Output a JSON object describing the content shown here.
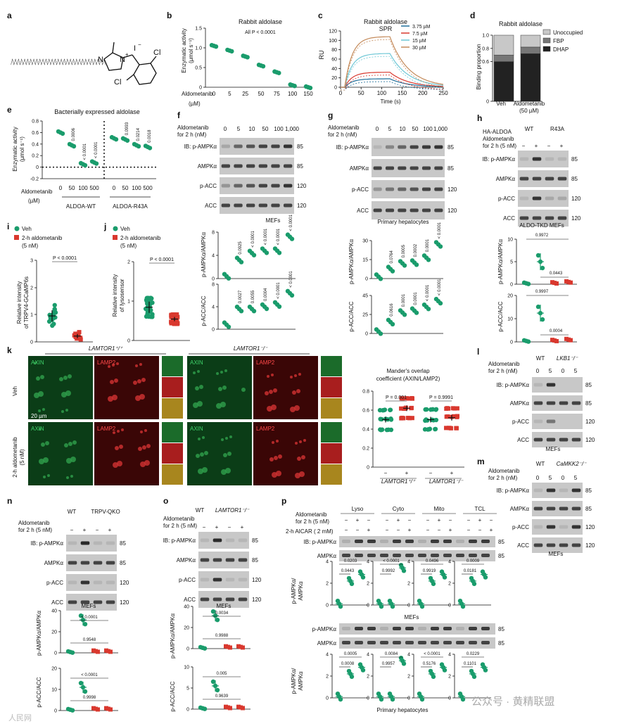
{
  "panels": {
    "a": {
      "letter": "a",
      "cl1": "Cl",
      "cl2": "Cl",
      "iodide": "I",
      "minus": "−",
      "plus": "+",
      "n1": "N",
      "n2": "N"
    },
    "b": {
      "letter": "b",
      "title": "Rabbit aldolase",
      "ylabel_line1": "Enzymatic activity",
      "ylabel_line2": "(µmol s⁻¹)",
      "pvalue": "All P < 0.0001",
      "xlabel_line1": "Aldometanib",
      "xlabel_line2": "(µM)"
    },
    "c": {
      "letter": "c",
      "title_line1": "Rabbit aldolase",
      "title_line2": "SPR",
      "ylabel": "RU",
      "xlabel": "Time (s)"
    },
    "d": {
      "letter": "d",
      "title": "Rabbit aldolase",
      "ylabel": "Binding proportion",
      "legend": [
        "Unoccupied",
        "FBP",
        "DHAP"
      ],
      "x1": "Veh",
      "x2_line1": "Aldometanib",
      "x2_line2": "(50 µM)"
    },
    "e": {
      "letter": "e",
      "title": "Bacterially expressed aldolase",
      "ylabel_line1": "Enzymatic activity",
      "ylabel_line2": "(µmol s⁻¹)",
      "xlabel_line1": "Aldometanib",
      "xlabel_line2": "(µM)",
      "group1": "ALDOA-WT",
      "group2": "ALDOA-R43A",
      "pvals": [
        "0.0006",
        "< 0.0001",
        "< 0.0001",
        "0.0993",
        "0.0214",
        "0.0018"
      ]
    },
    "f": {
      "letter": "f",
      "treat_line1": "Aldometanib",
      "treat_line2": "for 2 h (nM)",
      "doses": [
        "0",
        "5",
        "10",
        "50",
        "100",
        "1,000"
      ],
      "rows": [
        "IB: p-AMPKα",
        "AMPKα",
        "p-ACC",
        "ACC"
      ],
      "kda": [
        "85",
        "85",
        "120",
        "120"
      ],
      "cell": "MEFs",
      "ylab1": "p-AMPKα/AMPKα",
      "ylab2": "p-ACC/ACC",
      "p1": [
        "0.0925",
        "< 0.0001",
        "< 0.0001",
        "< 0.0001",
        "< 0.0001"
      ],
      "p2": [
        "0.0027",
        "0.0055",
        "0.0004",
        "< 0.0001",
        "< 0.0001"
      ]
    },
    "g": {
      "letter": "g",
      "treat_line1": "Aldometanib",
      "treat_line2": "for 2 h (nM)",
      "doses": [
        "0",
        "5",
        "10",
        "50",
        "100",
        "1,000"
      ],
      "rows": [
        "IB: p-AMPKα",
        "AMPKα",
        "p-ACC",
        "ACC"
      ],
      "kda": [
        "85",
        "85",
        "120",
        "120"
      ],
      "cell": "Primary hepatocytes",
      "ylab1": "p-AMPKα/AMPKα",
      "ylab2": "p-ACC/ACC",
      "p1": [
        "0.0764",
        "0.0005",
        "0.0002",
        "0.0001",
        "< 0.0001"
      ],
      "p2": [
        "0.0616",
        "0.0001",
        "0.0001",
        "< 0.0001",
        "< 0.0001"
      ]
    },
    "h": {
      "letter": "h",
      "header": "HA-ALDOA",
      "wt": "WT",
      "mut": "R43A",
      "treat_line1": "Aldometanib",
      "treat_line2": "for 2 h (5 nM)",
      "rows": [
        "IB: p-AMPKα",
        "AMPKα",
        "p-ACC",
        "ACC"
      ],
      "kda": [
        "85",
        "85",
        "120",
        "120"
      ],
      "cell": "ALDO-TKD MEFs",
      "ylab1": "p-AMPKα/AMPKα",
      "ylab2": "p-ACC/ACC",
      "p1": [
        "0.9972",
        "0.0443"
      ],
      "p2": [
        "0.9997",
        "0.0004"
      ]
    },
    "i": {
      "letter": "i",
      "leg1": "Veh",
      "leg2_line1": "2-h aldometanib",
      "leg2_line2": "(5 nM)",
      "ylabel_line1": "Relative intensity",
      "ylabel_line2": "of TRPV4-GCaMP6s",
      "pvalue": "P < 0.0001"
    },
    "j": {
      "letter": "j",
      "leg1": "Veh",
      "leg2_line1": "2-h aldometanib",
      "leg2_line2": "(5 nM)",
      "ylabel_line1": "Relative intensity",
      "ylabel_line2": "of lysosensor",
      "pvalue": "P < 0.0001"
    },
    "k": {
      "letter": "k",
      "geno1": "LAMTOR1⁺/⁺",
      "geno2": "LAMTOR1⁻/⁻",
      "ch1": "AXIN",
      "ch2": "LAMP2",
      "row1": "Veh",
      "row2_line1": "2-h aldometanib",
      "row2_line2": "(5 nM)",
      "scale": "20 µm",
      "chart_title_line1": "Mander's overlap",
      "chart_title_line2": "coefficient (AXIN/LAMP2)",
      "p1": "P = 0.001",
      "p2": "P = 0.9991"
    },
    "l": {
      "letter": "l",
      "wt": "WT",
      "ko": "LKB1⁻/⁻",
      "treat_line1": "Aldometanib",
      "treat_line2": "for 2 h (nM)",
      "doses": [
        "0",
        "5",
        "0",
        "5"
      ],
      "rows": [
        "IB: p-AMPKα",
        "AMPKα",
        "p-ACC",
        "ACC"
      ],
      "kda": [
        "85",
        "85",
        "120",
        "120"
      ],
      "cell": "MEFs"
    },
    "m": {
      "letter": "m",
      "wt": "WT",
      "ko": "CaMKK2⁻/⁻",
      "treat_line1": "Aldometanib",
      "treat_line2": "for 2 h (nM)",
      "doses": [
        "0",
        "5",
        "0",
        "5"
      ],
      "rows": [
        "IB: p-AMPKα",
        "AMPKα",
        "p-ACC",
        "ACC"
      ],
      "kda": [
        "85",
        "85",
        "120",
        "120"
      ],
      "cell": "MEFs"
    },
    "n": {
      "letter": "n",
      "wt": "WT",
      "ko": "TRPV-QKO",
      "treat_line1": "Aldometanib",
      "treat_line2": "for 2 h (5 nM)",
      "rows": [
        "IB: p-AMPKα",
        "AMPKα",
        "p-ACC",
        "ACC"
      ],
      "kda": [
        "85",
        "85",
        "120",
        "120"
      ],
      "cell": "MEFs",
      "ylab1": "p-AMPKα/AMPKα",
      "ylab2": "p-ACC/ACC",
      "p1": [
        "< 0.0001",
        "0.9548"
      ],
      "p2": [
        "< 0.0001",
        "0.9998"
      ]
    },
    "o": {
      "letter": "o",
      "wt": "WT",
      "ko": "LAMTOR1⁻/⁻",
      "treat_line1": "Aldometanib",
      "treat_line2": "for 2 h (5 nM)",
      "rows": [
        "IB: p-AMPKα",
        "AMPKα",
        "p-ACC",
        "ACC"
      ],
      "kda": [
        "85",
        "85",
        "120",
        "120"
      ],
      "cell": "MEFs",
      "ylab1": "p-AMPKα/AMPKα",
      "ylab2": "p-ACC/ACC",
      "p1": [
        "0.0034",
        "0.9988"
      ],
      "p2": [
        "0.005",
        "0.9639"
      ]
    },
    "p": {
      "letter": "p",
      "fractions": [
        "Lyso",
        "Cyto",
        "Mito",
        "TCL"
      ],
      "treat_line1": "Aldometanib",
      "treat_line2": "for 2 h (5 nM)",
      "aicar": "2-h AICAR ( 2 mM)",
      "rows": [
        "IB: p-AMPKα",
        "AMPKα"
      ],
      "kda": [
        "85",
        "85"
      ],
      "cell1": "MEFs",
      "cell2": "Primary hepatocytes",
      "ylab_line1": "p-AMPKα/",
      "ylab_line2": "AMPKα",
      "p_mef": [
        [
          "0.0203",
          "0.0443"
        ],
        [
          "< 0.0001",
          "0.9992"
        ],
        [
          "0.0496",
          "0.9919"
        ],
        [
          "0.0009",
          "0.0181"
        ]
      ],
      "p_hep": [
        [
          "0.0005",
          "0.0008"
        ],
        [
          "0.0084",
          "0.9957"
        ],
        [
          "< 0.0001",
          "0.5176"
        ],
        [
          "0.0229",
          "0.1101"
        ]
      ]
    }
  },
  "watermark_left": "人民网",
  "watermark_right": "公众号 · 黄精联盟",
  "colors": {
    "green": "#1a9c6c",
    "red": "#d9382e",
    "blot_bg": "#c8c8c8",
    "band": "#222222"
  },
  "chart_data": [
    {
      "type": "scatter",
      "panel": "b",
      "title": "Rabbit aldolase",
      "categories": [
        "0",
        "5",
        "25",
        "50",
        "75",
        "100",
        "150"
      ],
      "values": [
        1.05,
        0.93,
        0.78,
        0.55,
        0.38,
        0.05,
        0.0
      ],
      "xlabel": "Aldometanib (µM)",
      "ylabel": "Enzymatic activity (µmol s⁻¹)",
      "ylim": [
        0,
        1.5
      ],
      "yticks": [
        0,
        0.5,
        1.0,
        1.5
      ]
    },
    {
      "type": "line",
      "panel": "c",
      "title": "Rabbit aldolase SPR",
      "xlabel": "Time (s)",
      "ylabel": "RU",
      "xlim": [
        0,
        250
      ],
      "ylim": [
        0,
        120
      ],
      "xticks": [
        0,
        50,
        100,
        150,
        200,
        250
      ],
      "yticks": [
        0,
        20,
        40,
        60,
        80,
        100,
        120
      ],
      "series": [
        {
          "name": "3.75 µM",
          "peak": 18
        },
        {
          "name": "7.5 µM",
          "peak": 32
        },
        {
          "name": "15 µM",
          "peak": 72
        },
        {
          "name": "30 µM",
          "peak": 108
        }
      ]
    },
    {
      "type": "bar",
      "panel": "d",
      "title": "Rabbit aldolase",
      "categories": [
        "Veh",
        "Aldometanib (50 µM)"
      ],
      "series": [
        {
          "name": "DHAP",
          "values": [
            0.6,
            0.72
          ]
        },
        {
          "name": "FBP",
          "values": [
            0.1,
            0.1
          ]
        },
        {
          "name": "Unoccupied",
          "values": [
            0.3,
            0.18
          ]
        }
      ],
      "ylim": [
        0,
        1.0
      ],
      "yticks": [
        0,
        0.6,
        0.8,
        1.0
      ]
    },
    {
      "type": "scatter",
      "panel": "e",
      "title": "Bacterially expressed aldolase",
      "categories": [
        "0",
        "50",
        "100",
        "500",
        "0",
        "50",
        "100",
        "500"
      ],
      "values": [
        0.6,
        0.38,
        0.05,
        0.08,
        0.5,
        0.48,
        0.38,
        0.35
      ],
      "ylim": [
        -0.2,
        0.8
      ],
      "yticks": [
        -0.2,
        0,
        0.2,
        0.4,
        0.6,
        0.8
      ]
    },
    {
      "type": "scatter",
      "panel": "i",
      "categories": [
        "Veh",
        "2-h aldometanib"
      ],
      "values": [
        1.0,
        0.2
      ],
      "ylim": [
        0,
        3
      ],
      "yticks": [
        0,
        1,
        2,
        3
      ]
    },
    {
      "type": "scatter",
      "panel": "j",
      "categories": [
        "Veh",
        "2-h aldometanib"
      ],
      "values": [
        1.0,
        0.55
      ],
      "ylim": [
        0,
        2
      ],
      "yticks": [
        0,
        1,
        2
      ]
    },
    {
      "type": "scatter",
      "panel": "k",
      "categories": [
        "LAMTOR1⁺/⁺ −",
        "LAMTOR1⁺/⁺ +",
        "LAMTOR1⁻/⁻ −",
        "LAMTOR1⁻/⁻ +"
      ],
      "values": [
        0.5,
        0.62,
        0.5,
        0.52
      ],
      "ylim": [
        0,
        0.8
      ],
      "yticks": [
        0,
        0.2,
        0.4,
        0.6,
        0.8
      ]
    }
  ]
}
